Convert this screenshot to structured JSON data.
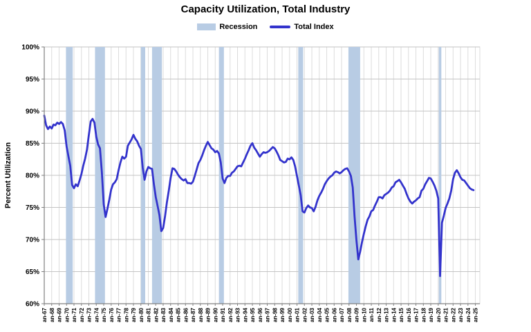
{
  "chart_data": {
    "type": "line",
    "title": "Capacity Utilization, Total Industry",
    "ylabel": "Percent Utilization",
    "ylim": [
      60,
      100
    ],
    "ytick_step": 5,
    "ytick_suffix": "%",
    "grid": true,
    "legend_position": "top",
    "legend": [
      {
        "label": "Recession",
        "type": "band"
      },
      {
        "label": "Total Index",
        "type": "line"
      }
    ],
    "colors": {
      "line": "#3333cc",
      "recession_band": "#b8cce4",
      "grid_horizontal": "#c3c3c3",
      "grid_vertical": "#dcdcdc",
      "axis": "#7f7f7f",
      "text": "#000000"
    },
    "x_start": 1967.0,
    "x_step": 0.25,
    "x_axis_max": 2025.6,
    "x_tick_years_start": 1967,
    "x_tick_labels": [
      "an-67",
      "an-68",
      "an-69",
      "an-70",
      "an-71",
      "an-72",
      "an-73",
      "an-74",
      "an-75",
      "an-76",
      "an-77",
      "an-78",
      "an-79",
      "an-80",
      "an-81",
      "an-82",
      "an-83",
      "an-84",
      "an-85",
      "an-86",
      "an-87",
      "an-88",
      "an-89",
      "an-90",
      "an-91",
      "an-92",
      "an-93",
      "an-94",
      "an-95",
      "an-96",
      "an-97",
      "an-98",
      "an-99",
      "an-00",
      "an-01",
      "an-02",
      "an-03",
      "an-04",
      "an-05",
      "an-06",
      "an-07",
      "an-08",
      "an-09",
      "an-10",
      "an-11",
      "an-12",
      "an-13",
      "an-14",
      "an-15",
      "an-16",
      "an-17",
      "an-18",
      "an-19",
      "an-20",
      "an-21",
      "an-22",
      "an-23",
      "an-24",
      "an-25"
    ],
    "recessions": [
      [
        1969.92,
        1970.83
      ],
      [
        1973.83,
        1975.17
      ],
      [
        1980.0,
        1980.58
      ],
      [
        1981.5,
        1982.83
      ],
      [
        1990.5,
        1991.17
      ],
      [
        2001.17,
        2001.83
      ],
      [
        2007.92,
        2009.5
      ],
      [
        2020.08,
        2020.42
      ]
    ],
    "series": [
      {
        "name": "Total Index",
        "values": [
          89.3,
          87.8,
          87.2,
          87.6,
          87.3,
          87.9,
          87.8,
          88.2,
          88.0,
          88.3,
          88.0,
          87.0,
          84.5,
          83.0,
          81.5,
          78.5,
          78.0,
          78.6,
          78.3,
          79.2,
          80.2,
          81.5,
          82.6,
          84.0,
          86.3,
          88.4,
          88.8,
          88.2,
          86.0,
          84.8,
          84.2,
          80.5,
          75.5,
          73.5,
          74.8,
          76.2,
          77.8,
          78.6,
          78.9,
          79.4,
          80.8,
          82.0,
          82.9,
          82.6,
          82.9,
          84.6,
          85.1,
          85.6,
          86.3,
          85.7,
          85.3,
          84.6,
          84.1,
          81.2,
          79.3,
          80.6,
          81.3,
          81.1,
          81.0,
          78.6,
          76.6,
          75.2,
          73.8,
          71.3,
          71.8,
          73.6,
          75.8,
          77.6,
          79.6,
          81.1,
          81.0,
          80.6,
          80.1,
          79.7,
          79.4,
          79.2,
          79.4,
          78.8,
          78.8,
          78.7,
          79.0,
          79.9,
          80.9,
          81.9,
          82.4,
          83.1,
          83.9,
          84.6,
          85.2,
          84.7,
          84.2,
          84.0,
          83.6,
          83.8,
          83.4,
          82.0,
          79.5,
          78.8,
          79.6,
          79.9,
          79.9,
          80.4,
          80.6,
          81.0,
          81.4,
          81.5,
          81.4,
          82.0,
          82.6,
          83.3,
          83.9,
          84.6,
          85.0,
          84.3,
          83.9,
          83.4,
          82.9,
          83.3,
          83.6,
          83.5,
          83.6,
          83.8,
          84.1,
          84.4,
          84.2,
          83.7,
          83.1,
          82.4,
          82.2,
          82.0,
          82.1,
          82.6,
          82.5,
          82.8,
          82.4,
          81.4,
          79.9,
          78.4,
          76.9,
          74.4,
          74.2,
          74.9,
          75.3,
          75.0,
          74.9,
          74.4,
          75.1,
          76.1,
          76.8,
          77.3,
          77.9,
          78.6,
          79.1,
          79.5,
          79.8,
          80.0,
          80.4,
          80.6,
          80.5,
          80.3,
          80.5,
          80.8,
          81.0,
          81.1,
          80.6,
          79.9,
          78.1,
          73.6,
          69.9,
          66.9,
          68.1,
          69.6,
          70.9,
          72.1,
          73.1,
          73.6,
          74.4,
          74.6,
          75.3,
          75.9,
          76.6,
          76.6,
          76.4,
          76.9,
          77.1,
          77.3,
          77.6,
          78.1,
          78.3,
          78.9,
          79.1,
          79.3,
          78.9,
          78.4,
          77.9,
          77.1,
          76.4,
          75.9,
          75.6,
          75.9,
          76.1,
          76.4,
          76.6,
          77.6,
          77.9,
          78.6,
          79.1,
          79.6,
          79.5,
          79.0,
          78.4,
          77.6,
          76.4,
          64.3,
          72.6,
          73.7,
          74.9,
          75.6,
          76.4,
          77.6,
          79.4,
          80.4,
          80.8,
          80.3,
          79.7,
          79.3,
          79.2,
          78.8,
          78.4,
          78.0,
          77.8,
          77.7
        ]
      }
    ]
  }
}
